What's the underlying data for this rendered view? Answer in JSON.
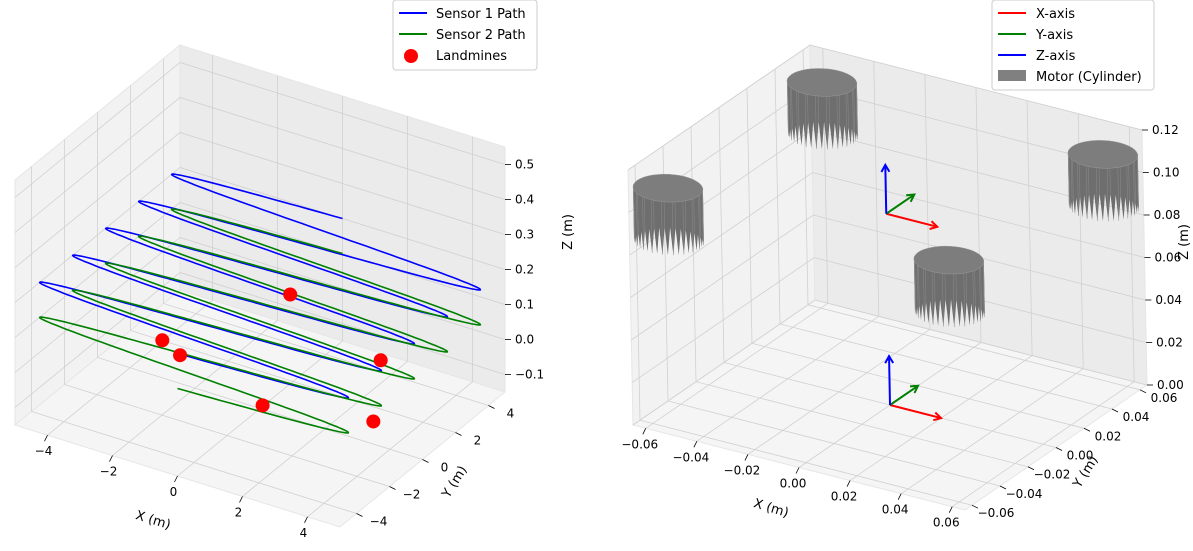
{
  "chart_data": [
    {
      "type": "3d-line-scatter",
      "xlabel": "X (m)",
      "ylabel": "Y (m)",
      "zlabel": "Z (m)",
      "x_ticks": [
        "−4",
        "−2",
        "0",
        "2",
        "4"
      ],
      "y_ticks": [
        "−4",
        "−2",
        "0",
        "2",
        "4"
      ],
      "z_ticks": [
        "−0.1",
        "0.0",
        "0.1",
        "0.2",
        "0.3",
        "0.4",
        "0.5"
      ],
      "xlim": [
        -5,
        5
      ],
      "ylim": [
        -5,
        5
      ],
      "zlim": [
        -0.15,
        0.55
      ],
      "legend": [
        {
          "label": "Sensor 1 Path",
          "color": "#0000ff",
          "kind": "line"
        },
        {
          "label": "Sensor 2 Path",
          "color": "#008000",
          "kind": "line"
        },
        {
          "label": "Landmines",
          "color": "#ff0000",
          "kind": "marker"
        }
      ],
      "series": [
        {
          "name": "Sensor 1 Path",
          "color": "#0000ff",
          "z": 0.2,
          "x_amplitude": 5,
          "y_start": -5,
          "y_end": 5,
          "sweeps": 5
        },
        {
          "name": "Sensor 2 Path",
          "color": "#008000",
          "z": 0.1,
          "x_amplitude": 5,
          "y_start": -5,
          "y_end": 5,
          "sweeps": 5
        }
      ],
      "landmines": [
        {
          "x": -1,
          "y": 3.8,
          "z": 0
        },
        {
          "x": 2.8,
          "y": 1.8,
          "z": 0
        },
        {
          "x": -2.6,
          "y": -0.8,
          "z": 0
        },
        {
          "x": -1.8,
          "y": -1.3,
          "z": 0
        },
        {
          "x": 1.4,
          "y": -2.6,
          "z": 0
        },
        {
          "x": 4.3,
          "y": -1.6,
          "z": 0
        }
      ]
    },
    {
      "type": "3d-cylinders",
      "xlabel": "X (m)",
      "ylabel": "Y (m)",
      "zlabel": "Z (m)",
      "x_ticks": [
        "−0.06",
        "−0.04",
        "−0.02",
        "0.00",
        "0.02",
        "0.04",
        "0.06"
      ],
      "y_ticks": [
        "−0.06",
        "−0.04",
        "−0.02",
        "0.00",
        "0.02",
        "0.04",
        "0.06"
      ],
      "z_ticks": [
        "0.00",
        "0.02",
        "0.04",
        "0.06",
        "0.08",
        "0.10",
        "0.12"
      ],
      "xlim": [
        -0.065,
        0.065
      ],
      "ylim": [
        -0.065,
        0.065
      ],
      "zlim": [
        0,
        0.12
      ],
      "legend": [
        {
          "label": "X-axis",
          "color": "#ff0000",
          "kind": "line"
        },
        {
          "label": "Y-axis",
          "color": "#008000",
          "kind": "line"
        },
        {
          "label": "Z-axis",
          "color": "#0000ff",
          "kind": "line"
        },
        {
          "label": "Motor (Cylinder)",
          "color": "#808080",
          "kind": "patch"
        }
      ],
      "cylinders": [
        {
          "x": -0.055,
          "y": 0.055,
          "z0": 0.085,
          "height": 0.025
        },
        {
          "x": 0.055,
          "y": 0.055,
          "z0": 0.085,
          "height": 0.025
        },
        {
          "x": -0.055,
          "y": -0.055,
          "z0": 0.085,
          "height": 0.025
        },
        {
          "x": 0.055,
          "y": -0.055,
          "z0": 0.085,
          "height": 0.025
        }
      ],
      "frames": [
        {
          "x": 0,
          "y": 0,
          "z": 0,
          "length": 0.02
        },
        {
          "x": 0,
          "y": 0,
          "z": 0.09,
          "length": 0.02
        }
      ]
    }
  ]
}
